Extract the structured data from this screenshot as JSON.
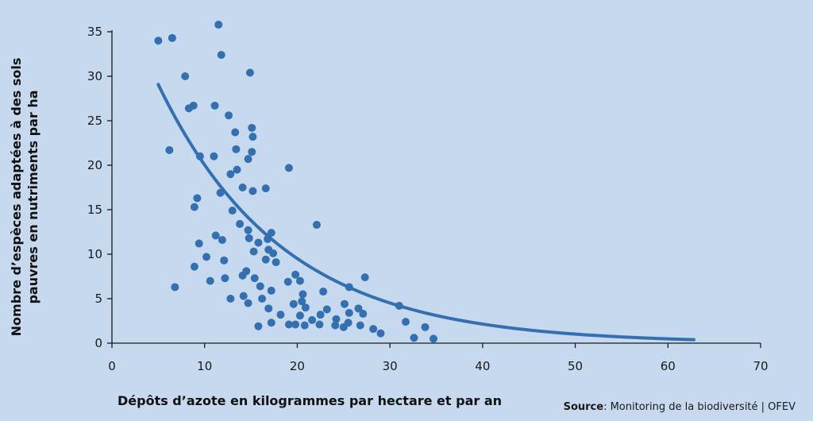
{
  "chart_data": {
    "type": "scatter",
    "xlabel": "Dépôts d’azote en kilogrammes par hectare et par an",
    "ylabel_line1": "Nombre d’espèces adaptées à des sols",
    "ylabel_line2": "pauvres en nutriments par ha",
    "source_label": "Source",
    "source_text": ": Monitoring de la biodiversité | OFEV",
    "xlim": [
      0,
      70
    ],
    "ylim": [
      0,
      35
    ],
    "x_ticks": [
      "0",
      "10",
      "20",
      "30",
      "40",
      "50",
      "60",
      "70"
    ],
    "y_ticks": [
      "0",
      "5",
      "10",
      "15",
      "20",
      "25",
      "30",
      "35"
    ],
    "grid": false,
    "colors": {
      "points": "#3470b0",
      "curve": "#3470b0",
      "background": "#c6d9ee",
      "axis": "#1a1a1a"
    },
    "points": [
      [
        5.0,
        34.0
      ],
      [
        6.5,
        34.3
      ],
      [
        11.5,
        35.8
      ],
      [
        11.8,
        32.4
      ],
      [
        7.9,
        30.0
      ],
      [
        14.9,
        30.4
      ],
      [
        8.3,
        26.4
      ],
      [
        8.8,
        26.7
      ],
      [
        11.1,
        26.7
      ],
      [
        12.6,
        25.6
      ],
      [
        13.3,
        23.7
      ],
      [
        15.1,
        24.2
      ],
      [
        15.2,
        23.2
      ],
      [
        6.2,
        21.7
      ],
      [
        9.5,
        21.0
      ],
      [
        11.0,
        21.0
      ],
      [
        13.4,
        21.8
      ],
      [
        15.1,
        21.5
      ],
      [
        14.7,
        20.7
      ],
      [
        13.5,
        19.5
      ],
      [
        12.8,
        19.0
      ],
      [
        19.1,
        19.7
      ],
      [
        14.1,
        17.5
      ],
      [
        15.2,
        17.1
      ],
      [
        16.6,
        17.4
      ],
      [
        11.7,
        16.9
      ],
      [
        9.2,
        16.3
      ],
      [
        8.9,
        15.3
      ],
      [
        13.0,
        14.9
      ],
      [
        13.8,
        13.4
      ],
      [
        22.1,
        13.3
      ],
      [
        11.2,
        12.1
      ],
      [
        14.7,
        12.7
      ],
      [
        17.2,
        12.4
      ],
      [
        9.4,
        11.2
      ],
      [
        11.9,
        11.6
      ],
      [
        14.8,
        11.8
      ],
      [
        15.8,
        11.3
      ],
      [
        16.8,
        11.7
      ],
      [
        15.3,
        10.3
      ],
      [
        16.9,
        10.5
      ],
      [
        17.4,
        10.1
      ],
      [
        10.2,
        9.7
      ],
      [
        12.1,
        9.3
      ],
      [
        16.6,
        9.4
      ],
      [
        17.7,
        9.1
      ],
      [
        8.9,
        8.6
      ],
      [
        14.5,
        8.1
      ],
      [
        19.8,
        7.7
      ],
      [
        12.2,
        7.3
      ],
      [
        14.1,
        7.6
      ],
      [
        15.4,
        7.3
      ],
      [
        10.6,
        7.0
      ],
      [
        20.3,
        7.0
      ],
      [
        19.0,
        6.9
      ],
      [
        27.3,
        7.4
      ],
      [
        6.8,
        6.3
      ],
      [
        16.0,
        6.4
      ],
      [
        25.6,
        6.3
      ],
      [
        17.2,
        5.9
      ],
      [
        22.8,
        5.8
      ],
      [
        14.2,
        5.3
      ],
      [
        20.6,
        5.5
      ],
      [
        12.8,
        5.0
      ],
      [
        16.2,
        5.0
      ],
      [
        20.5,
        4.7
      ],
      [
        14.7,
        4.5
      ],
      [
        16.9,
        3.9
      ],
      [
        19.6,
        4.4
      ],
      [
        20.9,
        4.0
      ],
      [
        25.1,
        4.4
      ],
      [
        26.6,
        3.9
      ],
      [
        31.0,
        4.2
      ],
      [
        18.2,
        3.2
      ],
      [
        23.2,
        3.8
      ],
      [
        20.3,
        3.1
      ],
      [
        22.5,
        3.2
      ],
      [
        27.1,
        3.3
      ],
      [
        25.6,
        3.4
      ],
      [
        21.6,
        2.6
      ],
      [
        24.2,
        2.7
      ],
      [
        17.2,
        2.3
      ],
      [
        19.1,
        2.1
      ],
      [
        19.8,
        2.1
      ],
      [
        20.8,
        2.0
      ],
      [
        22.4,
        2.1
      ],
      [
        24.1,
        2.0
      ],
      [
        25.5,
        2.3
      ],
      [
        26.8,
        2.0
      ],
      [
        31.7,
        2.4
      ],
      [
        15.8,
        1.9
      ],
      [
        25.0,
        1.8
      ],
      [
        28.2,
        1.6
      ],
      [
        29.0,
        1.1
      ],
      [
        33.8,
        1.8
      ],
      [
        32.6,
        0.6
      ],
      [
        34.7,
        0.5
      ]
    ],
    "trend_curve": {
      "name": "",
      "model": "y = a * exp(-b * x)",
      "a": 42.2,
      "b": 0.0745,
      "x_range": [
        5.0,
        62.8
      ]
    }
  }
}
